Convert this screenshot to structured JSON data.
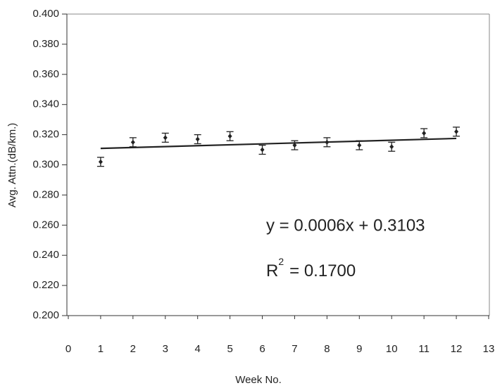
{
  "chart_data": {
    "type": "scatter",
    "x_label": "Week No.",
    "y_label": "Avg. Attn.(dB/km.)",
    "x": [
      1,
      2,
      3,
      4,
      5,
      6,
      7,
      8,
      9,
      10,
      11,
      12
    ],
    "series": [
      {
        "values": [
          0.302,
          0.315,
          0.318,
          0.317,
          0.319,
          0.31,
          0.313,
          0.315,
          0.313,
          0.312,
          0.321,
          0.322
        ],
        "errors": [
          0.003,
          0.003,
          0.003,
          0.003,
          0.003,
          0.003,
          0.003,
          0.003,
          0.003,
          0.003,
          0.003,
          0.003
        ],
        "color": "#222222"
      }
    ],
    "trendline": {
      "slope": 0.0006,
      "intercept": 0.3103,
      "color": "#222222"
    },
    "equation": "y  = 0.0006x + 0.3103",
    "r_squared": {
      "text": "R",
      "sup": "2",
      "rest": "= 0.1700"
    },
    "xlim": [
      0,
      13
    ],
    "xticks": [
      0,
      1,
      2,
      3,
      4,
      5,
      6,
      7,
      8,
      9,
      10,
      11,
      12,
      13
    ],
    "ylim": [
      0.2,
      0.4
    ],
    "yticks": [
      {
        "value": 0.2,
        "label": "0.200"
      },
      {
        "value": 0.22,
        "label": "0.220"
      },
      {
        "value": 0.24,
        "label": "0.240"
      },
      {
        "value": 0.26,
        "label": "0.260"
      },
      {
        "value": 0.28,
        "label": "0.280"
      },
      {
        "value": 0.3,
        "label": "0.300"
      },
      {
        "value": 0.32,
        "label": "0.320"
      },
      {
        "value": 0.34,
        "label": "0.340"
      },
      {
        "value": 0.36,
        "label": "0.360"
      },
      {
        "value": 0.38,
        "label": "0.380"
      },
      {
        "value": 0.4,
        "label": "0.400"
      }
    ]
  }
}
